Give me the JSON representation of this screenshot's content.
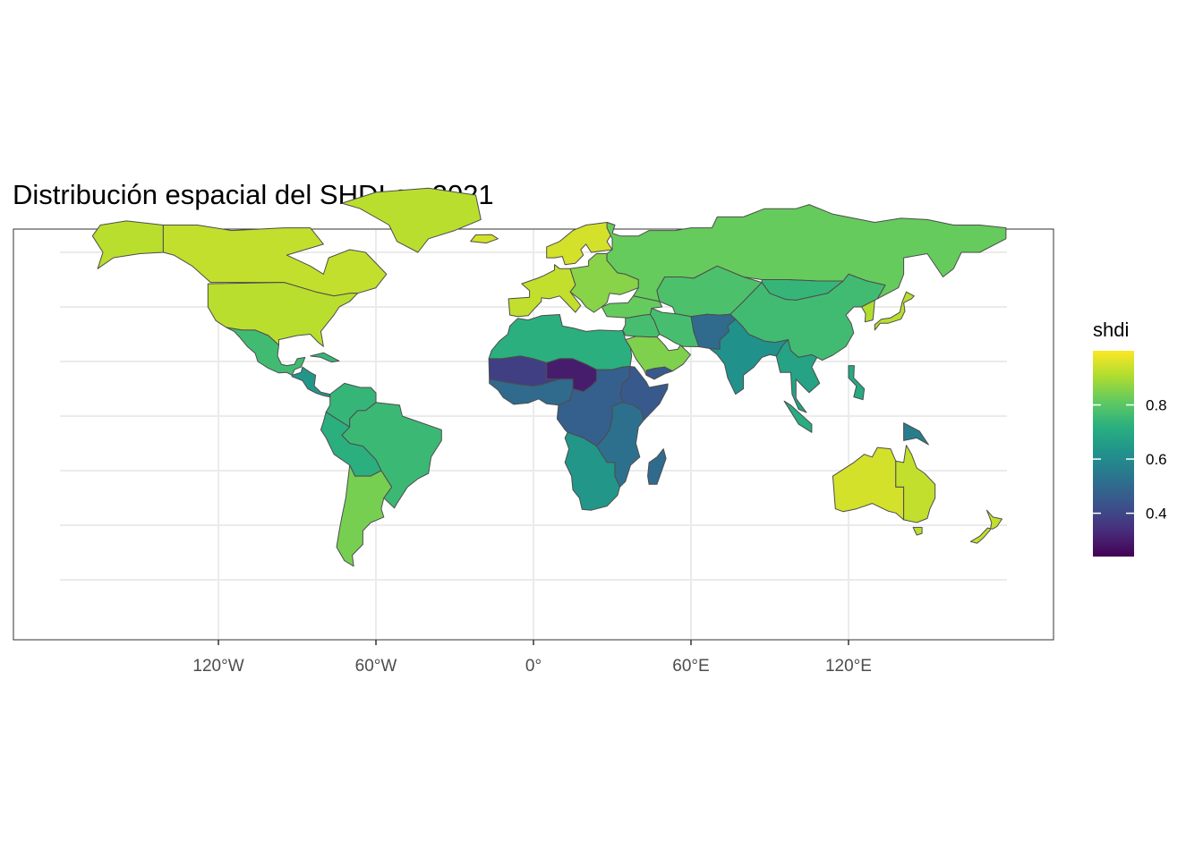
{
  "title": "Distribución espacial del SHDI en 2021",
  "x_axis": {
    "ticks": [
      {
        "value": -120,
        "label": "120°W"
      },
      {
        "value": -60,
        "label": "60°W"
      },
      {
        "value": 0,
        "label": "0°"
      },
      {
        "value": 60,
        "label": "60°E"
      },
      {
        "value": 120,
        "label": "120°E"
      }
    ]
  },
  "legend": {
    "title": "shdi",
    "ticks": [
      {
        "value": 0.4,
        "label": "0.4"
      },
      {
        "value": 0.6,
        "label": "0.6"
      },
      {
        "value": 0.8,
        "label": "0.8"
      }
    ],
    "range": [
      0.24,
      1.0
    ],
    "palette": "viridis",
    "placement": "right"
  },
  "map": {
    "extent": {
      "lon": [
        -180,
        180
      ],
      "lat": [
        -58,
        84
      ]
    },
    "grid": true,
    "background": "#ffffff",
    "gridline_color": "#ebebeb",
    "border_color": "#4d4d4d"
  },
  "regions": [
    {
      "name": "Alaska",
      "shdi": 0.92
    },
    {
      "name": "Canada",
      "shdi": 0.93
    },
    {
      "name": "Greenland",
      "shdi": 0.92
    },
    {
      "name": "United States",
      "shdi": 0.92
    },
    {
      "name": "Mexico",
      "shdi": 0.76
    },
    {
      "name": "Central America",
      "shdi": 0.64
    },
    {
      "name": "Caribbean",
      "shdi": 0.74
    },
    {
      "name": "Colombia & Venezuela",
      "shdi": 0.74
    },
    {
      "name": "Brazil",
      "shdi": 0.75
    },
    {
      "name": "Peru & Bolivia",
      "shdi": 0.72
    },
    {
      "name": "Chile & Argentina",
      "shdi": 0.84
    },
    {
      "name": "Iceland",
      "shdi": 0.95
    },
    {
      "name": "Scandinavia",
      "shdi": 0.95
    },
    {
      "name": "Western Europe",
      "shdi": 0.93
    },
    {
      "name": "Eastern Europe",
      "shdi": 0.86
    },
    {
      "name": "Russia",
      "shdi": 0.82
    },
    {
      "name": "Turkey & Caucasus",
      "shdi": 0.82
    },
    {
      "name": "Central Asia",
      "shdi": 0.78
    },
    {
      "name": "Middle East",
      "shdi": 0.77
    },
    {
      "name": "Arabian Peninsula",
      "shdi": 0.85
    },
    {
      "name": "Yemen",
      "shdi": 0.45
    },
    {
      "name": "Iran",
      "shdi": 0.77
    },
    {
      "name": "Afghanistan & Pakistan",
      "shdi": 0.5
    },
    {
      "name": "India",
      "shdi": 0.62
    },
    {
      "name": "China",
      "shdi": 0.76
    },
    {
      "name": "Mongolia",
      "shdi": 0.74
    },
    {
      "name": "Southeast Asia",
      "shdi": 0.68
    },
    {
      "name": "Indonesia",
      "shdi": 0.71
    },
    {
      "name": "Papua New Guinea",
      "shdi": 0.56
    },
    {
      "name": "Japan",
      "shdi": 0.92
    },
    {
      "name": "Korea",
      "shdi": 0.91
    },
    {
      "name": "Philippines",
      "shdi": 0.7
    },
    {
      "name": "North Africa",
      "shdi": 0.72
    },
    {
      "name": "Sahel",
      "shdi": 0.38
    },
    {
      "name": "Chad & Niger",
      "shdi": 0.3
    },
    {
      "name": "West Africa",
      "shdi": 0.5
    },
    {
      "name": "Horn of Africa",
      "shdi": 0.45
    },
    {
      "name": "Central Africa",
      "shdi": 0.47
    },
    {
      "name": "East Africa",
      "shdi": 0.52
    },
    {
      "name": "Southern Africa",
      "shdi": 0.64
    },
    {
      "name": "Madagascar",
      "shdi": 0.5
    },
    {
      "name": "Australia",
      "shdi": 0.95
    },
    {
      "name": "Eastern Australia",
      "shdi": 0.93
    },
    {
      "name": "Tasmania",
      "shdi": 0.92
    },
    {
      "name": "New Zealand",
      "shdi": 0.93
    }
  ]
}
